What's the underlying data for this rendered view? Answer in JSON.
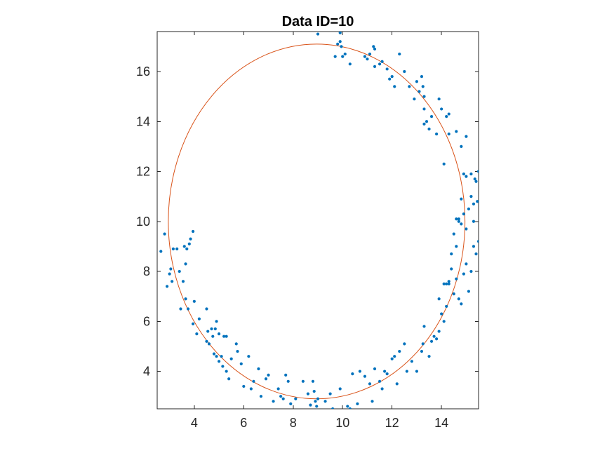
{
  "chart_data": {
    "type": "scatter",
    "title": "Data ID=10",
    "xlabel": "",
    "ylabel": "",
    "xlim": [
      2.5,
      15.5
    ],
    "ylim": [
      2.5,
      17.6
    ],
    "xticks": [
      4,
      6,
      8,
      10,
      12,
      14
    ],
    "yticks": [
      4,
      6,
      8,
      10,
      12,
      14,
      16
    ],
    "grid": false,
    "colors": {
      "points": "#0072BD",
      "fit": "#D95319",
      "axes": "#262626"
    },
    "series": [
      {
        "type": "scatter",
        "points": [
          [
            2.65,
            8.8
          ],
          [
            2.8,
            9.5
          ],
          [
            2.9,
            7.4
          ],
          [
            3.0,
            7.9
          ],
          [
            3.05,
            8.1
          ],
          [
            3.15,
            8.9
          ],
          [
            3.1,
            7.6
          ],
          [
            3.3,
            8.9
          ],
          [
            3.4,
            8.0
          ],
          [
            3.45,
            6.5
          ],
          [
            3.55,
            7.6
          ],
          [
            3.6,
            9.0
          ],
          [
            3.65,
            8.3
          ],
          [
            3.7,
            8.9
          ],
          [
            3.65,
            6.9
          ],
          [
            3.75,
            6.5
          ],
          [
            3.8,
            9.1
          ],
          [
            3.85,
            9.3
          ],
          [
            3.95,
            9.6
          ],
          [
            3.95,
            5.9
          ],
          [
            4.0,
            6.8
          ],
          [
            4.1,
            5.5
          ],
          [
            4.2,
            6.1
          ],
          [
            4.5,
            6.5
          ],
          [
            4.55,
            5.6
          ],
          [
            4.5,
            5.2
          ],
          [
            4.6,
            5.1
          ],
          [
            4.7,
            5.7
          ],
          [
            4.75,
            5.4
          ],
          [
            4.8,
            4.7
          ],
          [
            4.85,
            5.7
          ],
          [
            4.9,
            6.0
          ],
          [
            4.9,
            4.6
          ],
          [
            5.0,
            5.5
          ],
          [
            5.0,
            4.4
          ],
          [
            5.1,
            4.6
          ],
          [
            5.15,
            4.2
          ],
          [
            5.2,
            5.4
          ],
          [
            5.3,
            4.0
          ],
          [
            5.3,
            5.4
          ],
          [
            5.4,
            3.7
          ],
          [
            5.5,
            4.5
          ],
          [
            5.7,
            5.1
          ],
          [
            5.75,
            4.8
          ],
          [
            5.9,
            4.3
          ],
          [
            6.0,
            3.4
          ],
          [
            6.2,
            4.6
          ],
          [
            6.3,
            3.3
          ],
          [
            6.4,
            3.6
          ],
          [
            6.6,
            4.1
          ],
          [
            6.7,
            3.0
          ],
          [
            6.9,
            3.7
          ],
          [
            7.0,
            3.85
          ],
          [
            7.2,
            2.8
          ],
          [
            7.4,
            3.3
          ],
          [
            7.5,
            3.0
          ],
          [
            7.6,
            2.9
          ],
          [
            7.7,
            3.85
          ],
          [
            7.8,
            3.6
          ],
          [
            7.9,
            2.7
          ],
          [
            8.1,
            2.9
          ],
          [
            8.4,
            3.6
          ],
          [
            8.6,
            3.1
          ],
          [
            8.7,
            2.65
          ],
          [
            8.8,
            3.6
          ],
          [
            8.85,
            3.2
          ],
          [
            8.9,
            2.8
          ],
          [
            8.95,
            2.6
          ],
          [
            9.0,
            2.9
          ],
          [
            9.3,
            2.8
          ],
          [
            9.5,
            3.1
          ],
          [
            9.6,
            2.5
          ],
          [
            9.7,
            2.4
          ],
          [
            9.9,
            3.3
          ],
          [
            10.2,
            2.6
          ],
          [
            10.3,
            2.5
          ],
          [
            10.4,
            3.9
          ],
          [
            10.6,
            2.7
          ],
          [
            10.7,
            4.0
          ],
          [
            10.9,
            3.8
          ],
          [
            11.1,
            3.5
          ],
          [
            11.2,
            2.8
          ],
          [
            11.3,
            4.1
          ],
          [
            11.5,
            3.6
          ],
          [
            11.6,
            3.3
          ],
          [
            11.7,
            4.0
          ],
          [
            11.8,
            3.9
          ],
          [
            12.0,
            4.5
          ],
          [
            12.1,
            4.6
          ],
          [
            12.2,
            3.5
          ],
          [
            12.3,
            4.8
          ],
          [
            12.5,
            5.1
          ],
          [
            12.6,
            4.0
          ],
          [
            12.8,
            4.4
          ],
          [
            13.0,
            4.0
          ],
          [
            13.2,
            4.8
          ],
          [
            13.25,
            5.1
          ],
          [
            13.3,
            5.8
          ],
          [
            13.5,
            4.6
          ],
          [
            13.6,
            5.2
          ],
          [
            13.7,
            5.4
          ],
          [
            13.8,
            5.3
          ],
          [
            13.9,
            5.6
          ],
          [
            14.0,
            6.3
          ],
          [
            14.1,
            6.0
          ],
          [
            14.2,
            6.6
          ],
          [
            14.3,
            7.6
          ],
          [
            14.4,
            8.7
          ],
          [
            14.5,
            7.1
          ],
          [
            14.6,
            7.7
          ],
          [
            14.7,
            6.9
          ],
          [
            14.8,
            6.7
          ],
          [
            14.9,
            7.9
          ],
          [
            15.0,
            8.3
          ],
          [
            15.1,
            7.2
          ],
          [
            15.2,
            8.0
          ],
          [
            15.3,
            9.0
          ],
          [
            15.4,
            8.7
          ],
          [
            15.5,
            9.2
          ],
          [
            13.9,
            6.9
          ],
          [
            14.1,
            7.5
          ],
          [
            14.2,
            7.5
          ],
          [
            14.3,
            7.5
          ],
          [
            14.4,
            8.1
          ],
          [
            14.5,
            9.5
          ],
          [
            14.6,
            9.0
          ],
          [
            14.7,
            10.1
          ],
          [
            14.8,
            9.9
          ],
          [
            14.9,
            10.3
          ],
          [
            15.0,
            9.7
          ],
          [
            15.1,
            10.5
          ],
          [
            15.2,
            11.0
          ],
          [
            15.3,
            10.0
          ],
          [
            15.4,
            11.6
          ],
          [
            15.5,
            12.0
          ],
          [
            14.6,
            10.1
          ],
          [
            14.7,
            10.0
          ],
          [
            14.8,
            10.9
          ],
          [
            15.0,
            11.8
          ],
          [
            15.2,
            11.9
          ],
          [
            15.3,
            10.7
          ],
          [
            15.35,
            11.7
          ],
          [
            15.45,
            10.8
          ],
          [
            14.1,
            12.3
          ],
          [
            14.9,
            11.9
          ],
          [
            15.0,
            13.4
          ],
          [
            14.8,
            13.0
          ],
          [
            14.6,
            13.6
          ],
          [
            14.3,
            13.5
          ],
          [
            14.2,
            14.2
          ],
          [
            14.3,
            14.3
          ],
          [
            13.9,
            14.9
          ],
          [
            14.0,
            14.5
          ],
          [
            13.8,
            13.5
          ],
          [
            13.6,
            14.2
          ],
          [
            13.5,
            13.7
          ],
          [
            13.4,
            14.0
          ],
          [
            13.3,
            14.5
          ],
          [
            13.3,
            13.9
          ],
          [
            13.3,
            15.0
          ],
          [
            13.25,
            15.4
          ],
          [
            13.2,
            15.8
          ],
          [
            13.1,
            15.2
          ],
          [
            13.0,
            15.6
          ],
          [
            12.9,
            14.9
          ],
          [
            12.7,
            15.4
          ],
          [
            12.5,
            16.0
          ],
          [
            12.3,
            16.7
          ],
          [
            12.1,
            15.4
          ],
          [
            12.0,
            15.8
          ],
          [
            11.9,
            15.7
          ],
          [
            11.8,
            16.1
          ],
          [
            11.6,
            16.4
          ],
          [
            11.5,
            16.3
          ],
          [
            11.3,
            16.2
          ],
          [
            11.25,
            17.0
          ],
          [
            11.0,
            16.5
          ],
          [
            10.9,
            16.6
          ],
          [
            11.3,
            16.9
          ],
          [
            11.1,
            16.7
          ],
          [
            10.3,
            16.3
          ],
          [
            10.1,
            16.7
          ],
          [
            10.0,
            16.6
          ],
          [
            9.9,
            17.2
          ],
          [
            9.8,
            17.1
          ],
          [
            9.7,
            16.6
          ],
          [
            9.9,
            17.55
          ],
          [
            9.0,
            17.5
          ],
          [
            9.95,
            17.0
          ]
        ]
      },
      {
        "type": "ellipse-fit",
        "center": [
          8.95,
          10.0
        ],
        "semi_axis_x": 6.0,
        "semi_axis_y": 7.1
      }
    ]
  }
}
